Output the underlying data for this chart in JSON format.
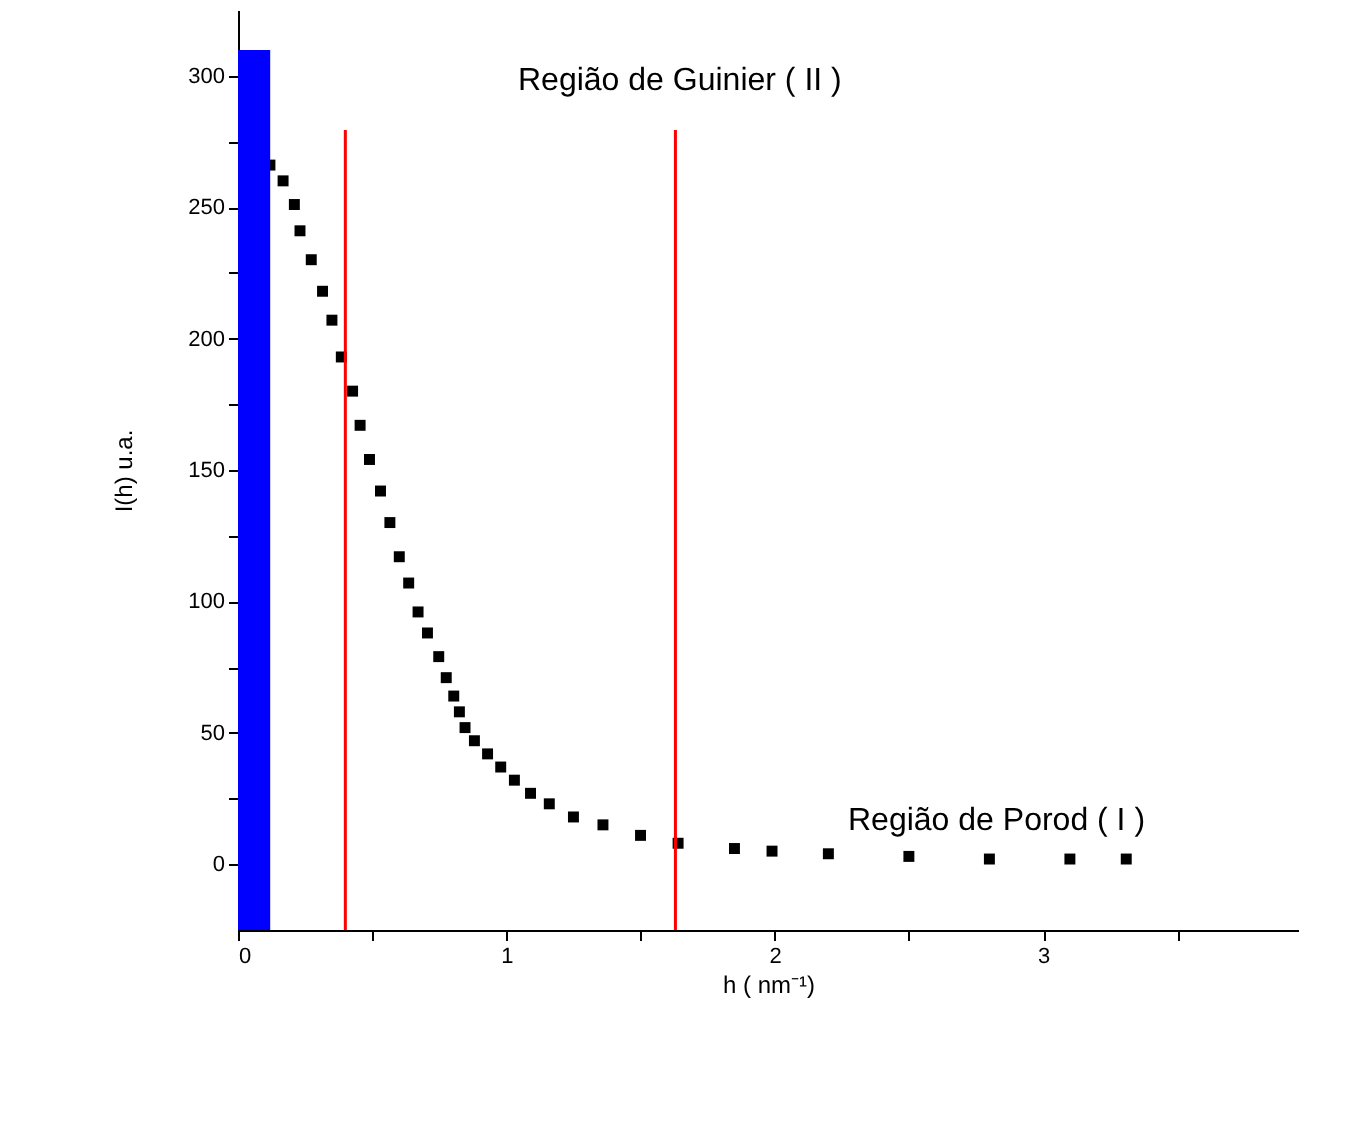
{
  "chart_data": {
    "type": "scatter",
    "xlabel": "h      ( nm⁻¹)",
    "ylabel": "I(h)      u.a.",
    "annotations": [
      "Região de Guinier ( II )",
      "Região de Porod ( I )"
    ],
    "x": [
      0.119,
      0.168,
      0.21,
      0.231,
      0.273,
      0.315,
      0.35,
      0.385,
      0.427,
      0.455,
      0.49,
      0.531,
      0.566,
      0.601,
      0.636,
      0.671,
      0.706,
      0.748,
      0.776,
      0.804,
      0.825,
      0.846,
      0.881,
      0.93,
      0.979,
      1.03,
      1.09,
      1.16,
      1.25,
      1.36,
      1.5,
      1.64,
      1.85,
      1.99,
      2.2,
      2.5,
      2.8,
      3.1,
      3.31
    ],
    "values": [
      266,
      260,
      251,
      241,
      230,
      218,
      207,
      193,
      180,
      167,
      154,
      142,
      130,
      117,
      107,
      96,
      88,
      79,
      71,
      64,
      58,
      52,
      47,
      42,
      37,
      32,
      27,
      23,
      18,
      15,
      11,
      8,
      6,
      5,
      4,
      3,
      2,
      2,
      2
    ],
    "color": "#000000",
    "marker": "square",
    "grid": false,
    "xlim": [
      0,
      3.95
    ],
    "xticks": [
      0,
      {
        "value": 0.5,
        "label": null
      },
      1,
      {
        "value": 1.5,
        "label": null
      },
      2,
      {
        "value": 2.5,
        "label": null
      },
      3,
      {
        "value": 3.5,
        "label": null
      }
    ],
    "ylim": [
      -25,
      325
    ],
    "yticks": [
      0,
      {
        "value": 25,
        "label": null
      },
      50,
      {
        "value": 75,
        "label": null
      },
      100,
      {
        "value": 125,
        "label": null
      },
      150,
      {
        "value": 175,
        "label": null
      },
      200,
      {
        "value": 225,
        "label": null
      },
      250,
      {
        "value": 275,
        "label": null
      },
      300
    ],
    "bands": [
      {
        "axis": "x",
        "from": 0,
        "to": 0.12,
        "color": "#0000ff"
      }
    ],
    "ref_lines": [
      {
        "axis": "x",
        "value": 0.4,
        "color": "#ff0000"
      },
      {
        "axis": "x",
        "value": 1.63,
        "color": "#ff0000"
      }
    ]
  }
}
